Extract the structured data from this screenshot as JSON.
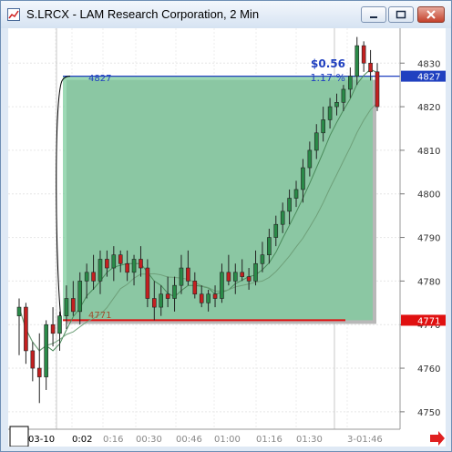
{
  "window": {
    "title": "S.LRCX - LAM Research Corporation, 2 Min",
    "icons": {
      "app": "chart-window-icon",
      "minimize": "minimize-icon",
      "maximize": "maximize-icon",
      "close": "close-icon",
      "scroll": "scroll-right-arrow-icon"
    }
  },
  "annotation": {
    "price_change": "$0.56",
    "percent_change": "1.17 %",
    "high_label": "4827",
    "low_label": "4771"
  },
  "chart_data": {
    "type": "candlestick",
    "title": "S.LRCX - LAM Research Corporation, 2 Min",
    "y_ticks": [
      "4830",
      "4820",
      "4810",
      "4800",
      "4790",
      "4780",
      "4770",
      "4760",
      "4750"
    ],
    "y_tick_values": [
      48.3,
      48.2,
      48.1,
      48.0,
      47.9,
      47.8,
      47.7,
      47.6,
      47.5
    ],
    "ylim": [
      47.46,
      48.38
    ],
    "x_ticks": [
      "03-10",
      "0:02",
      "0:16",
      "00:30",
      "00:46",
      "01:00",
      "01:16",
      "01:30",
      "3-01:46"
    ],
    "price_flags": [
      {
        "label": "4827",
        "value": 48.27,
        "color": "#2040c0"
      },
      {
        "label": "4771",
        "value": 47.71,
        "color": "#e01010"
      }
    ],
    "range_box": {
      "high": 48.27,
      "low": 47.71,
      "color": "#7ccc9c"
    },
    "candles_ohlc": [
      [
        47.72,
        47.76,
        47.63,
        47.74
      ],
      [
        47.74,
        47.75,
        47.61,
        47.64
      ],
      [
        47.64,
        47.66,
        47.57,
        47.6
      ],
      [
        47.6,
        47.68,
        47.52,
        47.58
      ],
      [
        47.58,
        47.71,
        47.55,
        47.7
      ],
      [
        47.7,
        47.74,
        47.65,
        47.68
      ],
      [
        47.68,
        47.73,
        47.64,
        47.72
      ],
      [
        47.72,
        47.79,
        47.69,
        47.76
      ],
      [
        47.76,
        47.8,
        47.72,
        47.73
      ],
      [
        47.73,
        47.82,
        47.7,
        47.8
      ],
      [
        47.8,
        47.84,
        47.76,
        47.82
      ],
      [
        47.82,
        47.86,
        47.78,
        47.8
      ],
      [
        47.8,
        47.87,
        47.77,
        47.85
      ],
      [
        47.85,
        47.87,
        47.81,
        47.83
      ],
      [
        47.83,
        47.88,
        47.8,
        47.86
      ],
      [
        47.86,
        47.87,
        47.82,
        47.84
      ],
      [
        47.84,
        47.87,
        47.8,
        47.82
      ],
      [
        47.82,
        47.86,
        47.79,
        47.85
      ],
      [
        47.85,
        47.88,
        47.81,
        47.83
      ],
      [
        47.83,
        47.85,
        47.74,
        47.76
      ],
      [
        47.76,
        47.8,
        47.71,
        47.74
      ],
      [
        47.74,
        47.79,
        47.72,
        47.77
      ],
      [
        47.77,
        47.81,
        47.74,
        47.76
      ],
      [
        47.76,
        47.81,
        47.73,
        47.79
      ],
      [
        47.79,
        47.86,
        47.77,
        47.83
      ],
      [
        47.83,
        47.87,
        47.79,
        47.8
      ],
      [
        47.8,
        47.82,
        47.76,
        47.77
      ],
      [
        47.77,
        47.79,
        47.74,
        47.75
      ],
      [
        47.75,
        47.78,
        47.73,
        47.77
      ],
      [
        47.77,
        47.79,
        47.74,
        47.76
      ],
      [
        47.76,
        47.84,
        47.75,
        47.82
      ],
      [
        47.82,
        47.86,
        47.79,
        47.8
      ],
      [
        47.8,
        47.84,
        47.77,
        47.82
      ],
      [
        47.82,
        47.85,
        47.8,
        47.81
      ],
      [
        47.81,
        47.83,
        47.78,
        47.8
      ],
      [
        47.8,
        47.87,
        47.79,
        47.84
      ],
      [
        47.84,
        47.89,
        47.82,
        47.86
      ],
      [
        47.86,
        47.92,
        47.84,
        47.9
      ],
      [
        47.9,
        47.95,
        47.88,
        47.93
      ],
      [
        47.93,
        47.98,
        47.91,
        47.96
      ],
      [
        47.96,
        48.01,
        47.93,
        47.99
      ],
      [
        47.99,
        48.03,
        47.97,
        48.01
      ],
      [
        48.01,
        48.08,
        47.98,
        48.06
      ],
      [
        48.06,
        48.12,
        48.04,
        48.1
      ],
      [
        48.1,
        48.16,
        48.08,
        48.14
      ],
      [
        48.14,
        48.2,
        48.12,
        48.17
      ],
      [
        48.17,
        48.22,
        48.15,
        48.2
      ],
      [
        48.2,
        48.23,
        48.18,
        48.21
      ],
      [
        48.21,
        48.25,
        48.19,
        48.24
      ],
      [
        48.24,
        48.29,
        48.22,
        48.27
      ],
      [
        48.27,
        48.36,
        48.25,
        48.34
      ],
      [
        48.34,
        48.35,
        48.28,
        48.3
      ],
      [
        48.3,
        48.33,
        48.26,
        48.28
      ],
      [
        48.28,
        48.3,
        48.19,
        48.2
      ]
    ]
  }
}
